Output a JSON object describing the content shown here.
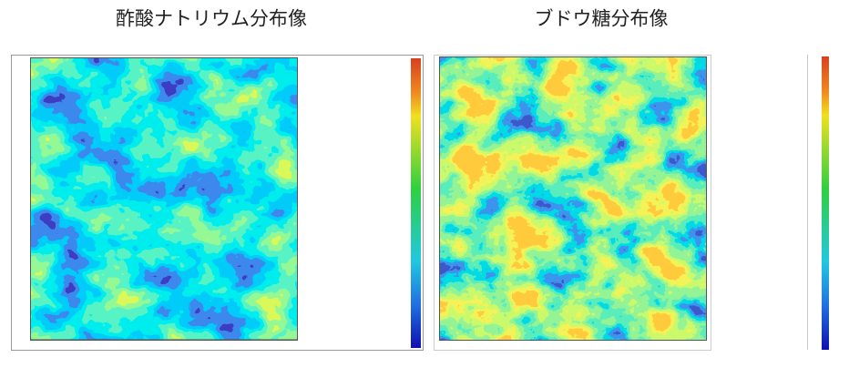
{
  "panels": [
    {
      "title": "酢酸ナトリウム分布像"
    },
    {
      "title": "ブドウ糖分布像"
    }
  ]
}
